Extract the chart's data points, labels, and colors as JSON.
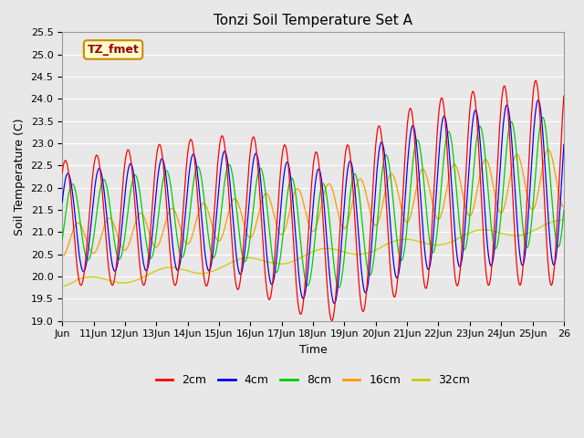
{
  "title": "Tonzi Soil Temperature Set A",
  "xlabel": "Time",
  "ylabel": "Soil Temperature (C)",
  "ylim": [
    19.0,
    25.5
  ],
  "xlim": [
    0,
    16
  ],
  "x_tick_labels": [
    "Jun",
    "11Jun",
    "12Jun",
    "13Jun",
    "14Jun",
    "15Jun",
    "16Jun",
    "17Jun",
    "18Jun",
    "19Jun",
    "20Jun",
    "21Jun",
    "22Jun",
    "23Jun",
    "24Jun",
    "25Jun",
    "26"
  ],
  "legend_labels": [
    "2cm",
    "4cm",
    "8cm",
    "16cm",
    "32cm"
  ],
  "legend_colors": [
    "#ff0000",
    "#0000ff",
    "#00cc00",
    "#ff9900",
    "#cccc00"
  ],
  "line_colors": [
    "#ff0000",
    "#0000ff",
    "#00cc00",
    "#ff9900",
    "#cccc00"
  ],
  "annotation_text": "TZ_fmet",
  "annotation_bg": "#ffffcc",
  "annotation_border": "#cc0000",
  "plot_bg": "#e8e8e8",
  "fig_bg": "#e8e8e8",
  "title_fontsize": 11,
  "axis_label_fontsize": 9,
  "tick_fontsize": 8,
  "legend_fontsize": 9,
  "y_ticks": [
    19.0,
    19.5,
    20.0,
    20.5,
    21.0,
    21.5,
    22.0,
    22.5,
    23.0,
    23.5,
    24.0,
    24.5,
    25.0,
    25.5
  ]
}
